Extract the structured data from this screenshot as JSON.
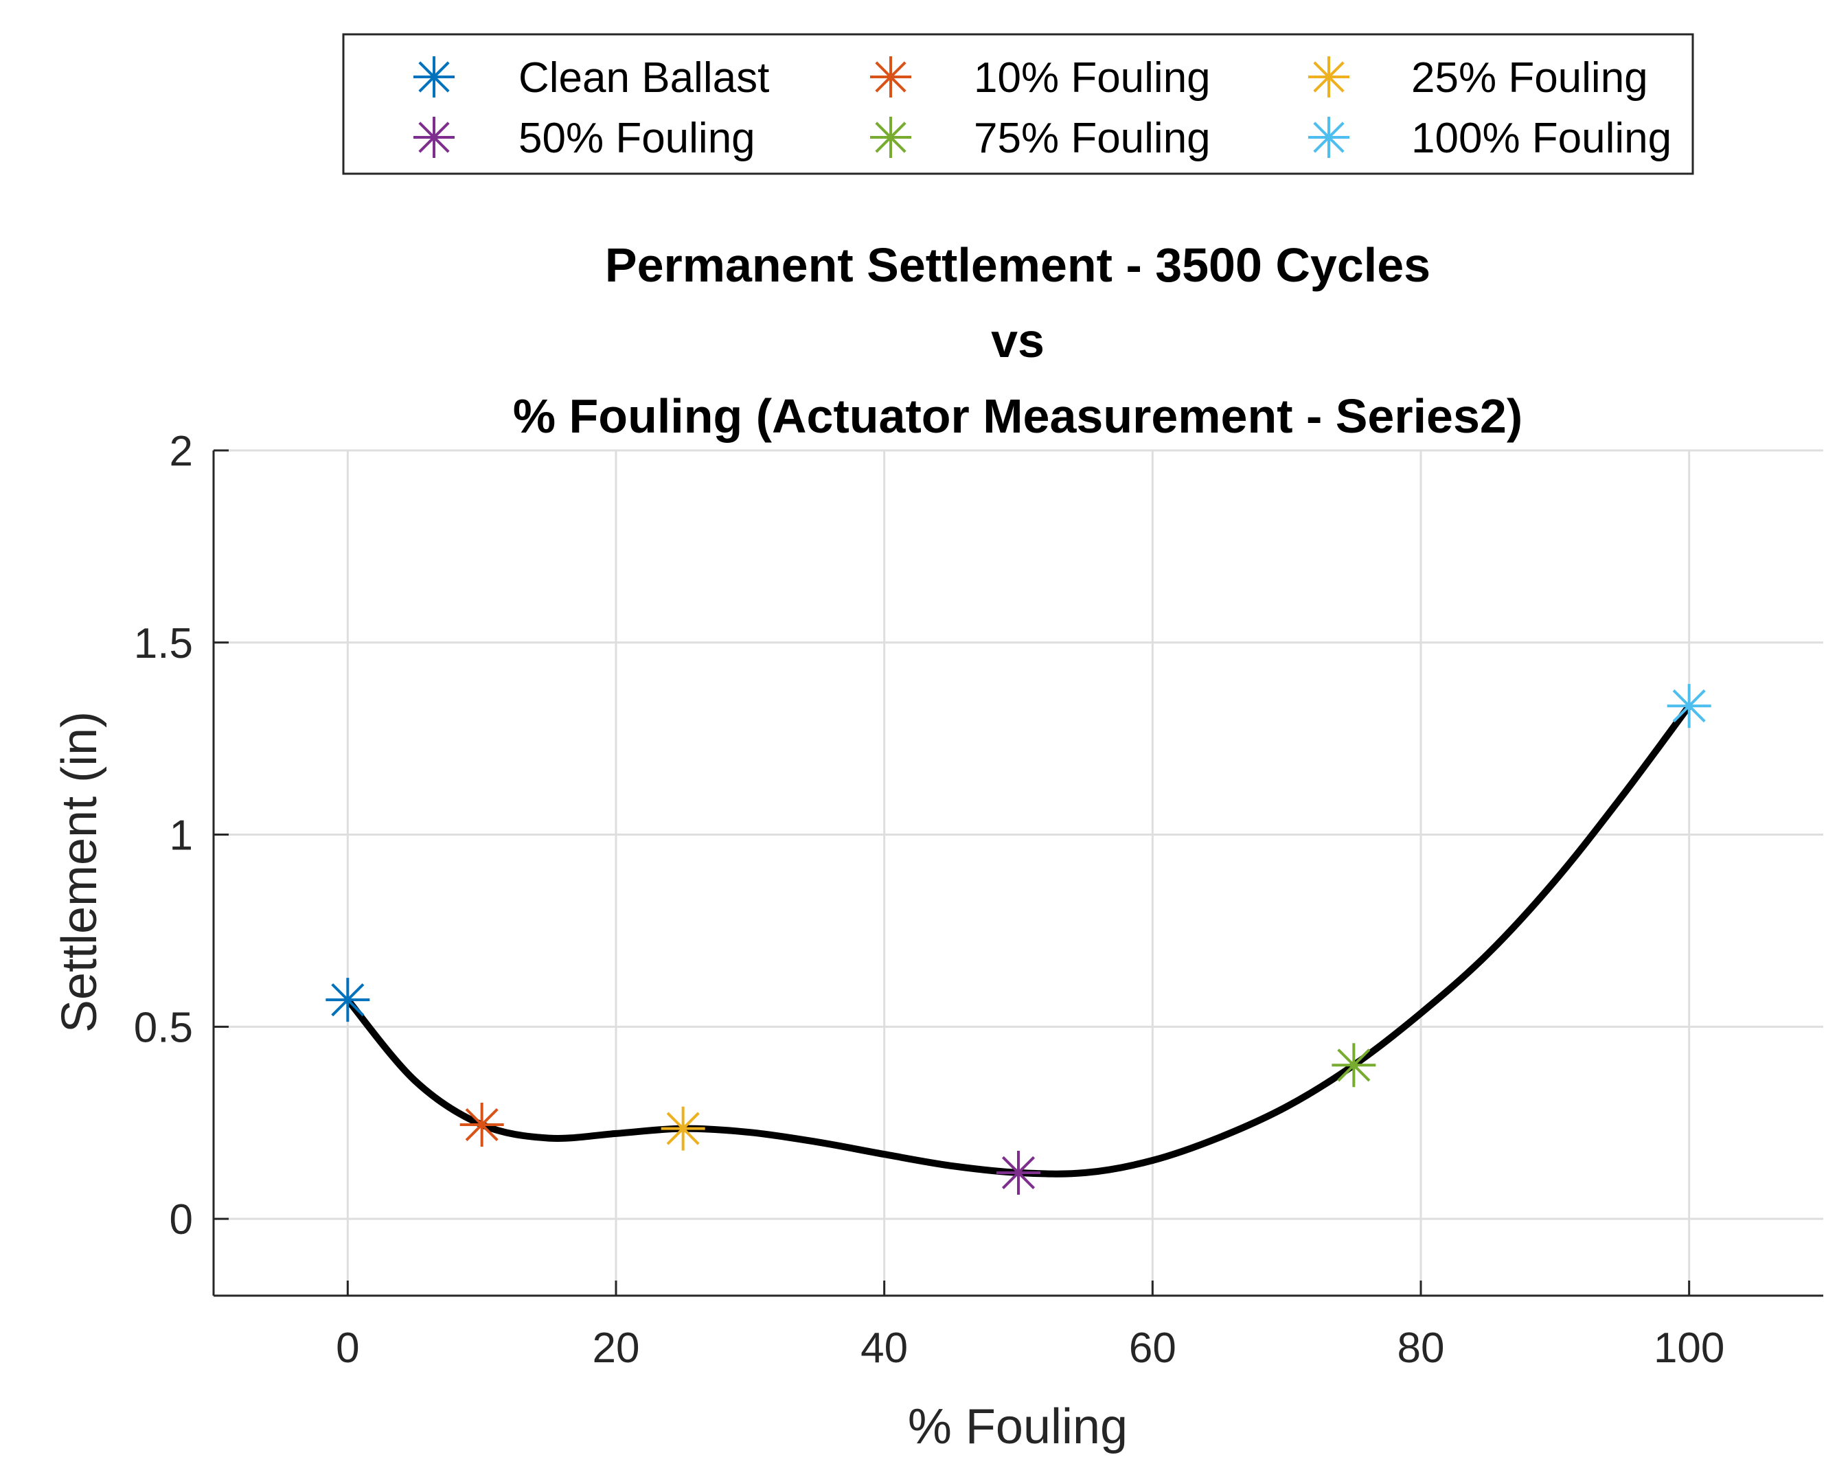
{
  "chart_data": {
    "type": "scatter",
    "title": [
      "Permanent Settlement - 3500 Cycles",
      "vs",
      "% Fouling (Actuator Measurement - Series2)"
    ],
    "xlabel": "% Fouling",
    "ylabel": "Settlement (in)",
    "xlim": [
      -10,
      110
    ],
    "ylim": [
      -0.2,
      2
    ],
    "xticks": [
      0,
      20,
      40,
      60,
      80,
      100
    ],
    "xtick_labels": [
      "0",
      "20",
      "40",
      "60",
      "80",
      "100"
    ],
    "yticks": [
      0,
      0.5,
      1,
      1.5,
      2
    ],
    "ytick_labels": [
      "0",
      "0.5",
      "1",
      "1.5",
      "2"
    ],
    "grid": true,
    "legend_position": "top",
    "series": [
      {
        "name": "Clean Ballast",
        "x": 0,
        "y": 0.57,
        "color": "#0072BD",
        "marker": "asterisk"
      },
      {
        "name": "10% Fouling",
        "x": 10,
        "y": 0.245,
        "color": "#D95319",
        "marker": "asterisk"
      },
      {
        "name": "25% Fouling",
        "x": 25,
        "y": 0.235,
        "color": "#EDB120",
        "marker": "asterisk"
      },
      {
        "name": "50% Fouling",
        "x": 50,
        "y": 0.12,
        "color": "#7E2F8E",
        "marker": "asterisk"
      },
      {
        "name": "75% Fouling",
        "x": 75,
        "y": 0.4,
        "color": "#77AC30",
        "marker": "asterisk"
      },
      {
        "name": "100% Fouling",
        "x": 100,
        "y": 1.335,
        "color": "#4DBEEE",
        "marker": "asterisk"
      }
    ],
    "fit_curve": {
      "color": "#000000",
      "x": [
        0,
        5,
        10,
        15,
        20,
        25,
        30,
        35,
        40,
        45,
        50,
        55,
        60,
        65,
        70,
        75,
        80,
        85,
        90,
        95,
        100
      ],
      "y": [
        0.57,
        0.36,
        0.245,
        0.21,
        0.222,
        0.235,
        0.225,
        0.2,
        0.168,
        0.138,
        0.12,
        0.12,
        0.152,
        0.212,
        0.292,
        0.4,
        0.535,
        0.69,
        0.88,
        1.1,
        1.335
      ]
    }
  }
}
